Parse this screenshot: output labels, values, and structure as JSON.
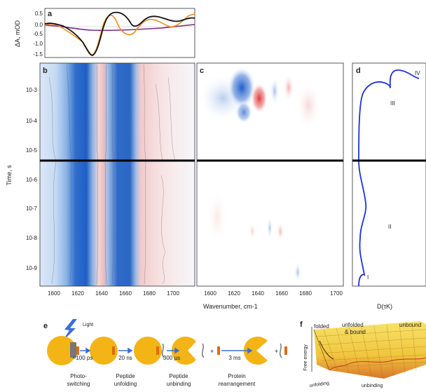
{
  "panel_a": {
    "letter": "a",
    "ylabel": "ΔA, mOD",
    "yticks": [
      "0.5",
      "0.0",
      "-0.5",
      "-1.0",
      "-1.5"
    ]
  },
  "panel_b": {
    "letter": "b",
    "ylabel": "Time, s",
    "yticks": [
      "10-3",
      "10-4",
      "10-5",
      "10-6",
      "10-7",
      "10-8",
      "10-9"
    ],
    "xticks": [
      "1600",
      "1620",
      "1640",
      "1660",
      "1680",
      "1700"
    ]
  },
  "panel_c": {
    "letter": "c",
    "xticks": [
      "1600",
      "1620",
      "1640",
      "1660",
      "1680",
      "1700"
    ]
  },
  "panel_d": {
    "letter": "d",
    "labels": [
      "IV",
      "III",
      "II",
      "I"
    ],
    "xlabel": "D(τK)"
  },
  "xaxis_label": "Wavenumber, cm-1",
  "panel_e": {
    "letter": "e",
    "light": "Light",
    "times": [
      "<100 ps",
      "20 ns",
      "300 µs",
      "3 ms"
    ],
    "plus": [
      "+",
      "+"
    ],
    "captions": [
      [
        "Photo-",
        "switching"
      ],
      [
        "Peptide",
        "unfolding"
      ],
      [
        "Peptide",
        "unbinding"
      ],
      [
        "Protein",
        "rearrangement"
      ]
    ]
  },
  "panel_f": {
    "letter": "f",
    "ylabel": "Free energy",
    "labels": [
      "folded",
      "unfolded",
      "& bound",
      "unbound"
    ],
    "axes": [
      "unfolding",
      "unbinding"
    ]
  }
}
